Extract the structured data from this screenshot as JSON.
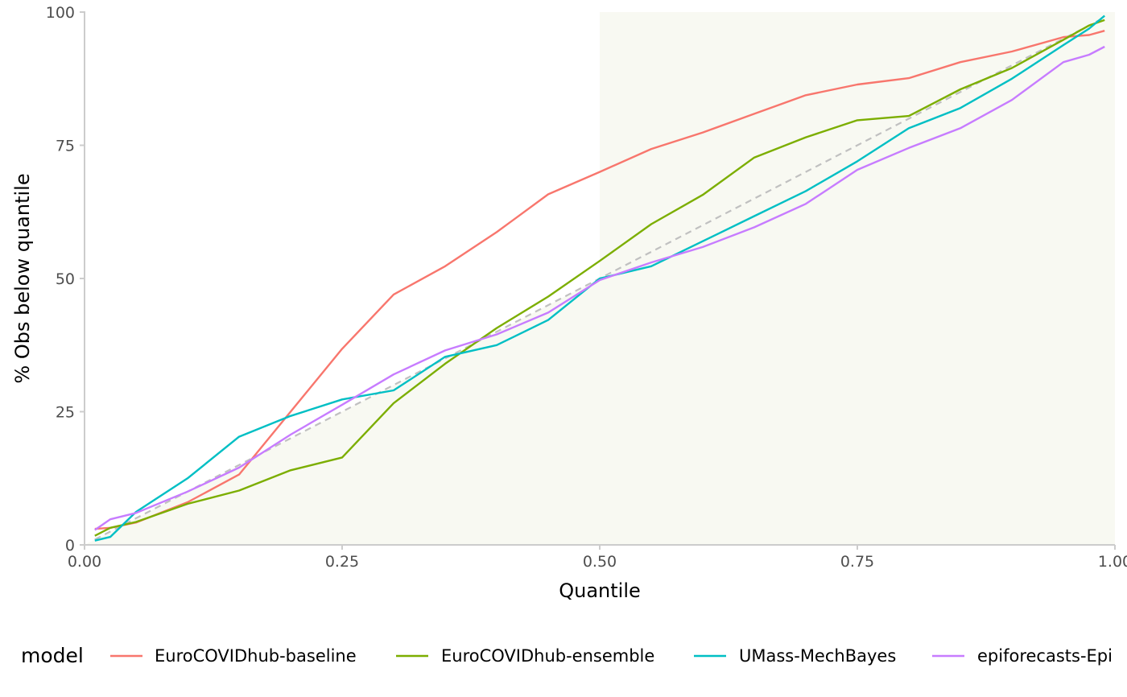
{
  "chart_data": {
    "type": "line",
    "xlabel": "Quantile",
    "ylabel": "% Obs below quantile",
    "xlim": [
      0,
      1
    ],
    "ylim": [
      0,
      100
    ],
    "x_ticks": [
      "0.00",
      "0.25",
      "0.50",
      "0.75",
      "1.00"
    ],
    "y_ticks": [
      "0",
      "25",
      "50",
      "75",
      "100"
    ],
    "grid": false,
    "shaded_regions": [
      {
        "description": "under-diagonal band",
        "color": "#f8f9f2"
      },
      {
        "x_range": [
          0.5,
          1.0
        ],
        "y_range": [
          0,
          100
        ],
        "color": "#f8f9f2"
      }
    ],
    "reference_line": {
      "x": [
        0.01,
        0.99
      ],
      "y": [
        1,
        99
      ],
      "style": "dashed",
      "color": "#c0c0c0"
    },
    "legend": {
      "title": "model",
      "position": "bottom"
    },
    "x": [
      0.01,
      0.025,
      0.05,
      0.1,
      0.15,
      0.2,
      0.25,
      0.3,
      0.35,
      0.4,
      0.45,
      0.5,
      0.55,
      0.6,
      0.65,
      0.7,
      0.75,
      0.8,
      0.85,
      0.9,
      0.95,
      0.975,
      0.99
    ],
    "series": [
      {
        "name": "EuroCOVIDhub-baseline",
        "color": "#F8766D",
        "values": [
          3.0,
          3.2,
          4.2,
          8.0,
          13.2,
          25.0,
          36.8,
          47.0,
          52.3,
          58.7,
          65.8,
          70.0,
          74.3,
          77.4,
          80.9,
          84.4,
          86.4,
          87.6,
          90.6,
          92.6,
          95.3,
          95.7,
          96.5
        ]
      },
      {
        "name": "EuroCOVIDhub-ensemble",
        "color": "#7CAE00",
        "values": [
          1.7,
          3.2,
          4.3,
          7.7,
          10.2,
          14.0,
          16.4,
          26.6,
          34.0,
          40.7,
          46.6,
          53.3,
          60.2,
          65.7,
          72.7,
          76.5,
          79.7,
          80.5,
          85.5,
          89.5,
          94.8,
          97.5,
          98.5
        ]
      },
      {
        "name": "UMass-MechBayes",
        "color": "#00BFC4",
        "values": [
          0.8,
          1.5,
          6.2,
          12.5,
          20.3,
          24.2,
          27.3,
          29.0,
          35.3,
          37.5,
          42.2,
          50.0,
          52.3,
          57.0,
          61.7,
          66.4,
          72.0,
          78.2,
          82.0,
          87.5,
          93.8,
          96.9,
          99.3
        ]
      },
      {
        "name": "epiforecasts-Epi",
        "color": "#C77CFF",
        "values": [
          2.8,
          4.8,
          6.0,
          10.0,
          14.5,
          20.7,
          26.3,
          32.0,
          36.5,
          39.5,
          43.6,
          49.7,
          53.0,
          55.9,
          59.6,
          64.0,
          70.4,
          74.5,
          78.2,
          83.5,
          90.6,
          92.0,
          93.5
        ]
      }
    ]
  }
}
